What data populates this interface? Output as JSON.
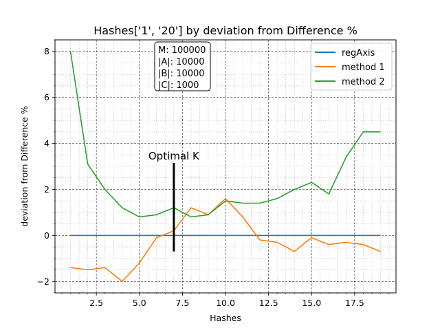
{
  "chart_data": {
    "type": "line",
    "title": "Hashes['1', '20'] by deviation from Difference %",
    "xlabel": "Hashes",
    "ylabel": "deviation from Difference %",
    "xlim": [
      0.1,
      19.9
    ],
    "ylim": [
      -2.5,
      8.5
    ],
    "xticks": [
      2.5,
      5.0,
      7.5,
      10.0,
      12.5,
      15.0,
      17.5
    ],
    "xtick_labels": [
      "2.5",
      "5.0",
      "7.5",
      "10.0",
      "12.5",
      "15.0",
      "17.5"
    ],
    "yticks": [
      -2,
      0,
      2,
      4,
      6,
      8
    ],
    "ytick_labels": [
      "−2",
      "0",
      "2",
      "4",
      "6",
      "8"
    ],
    "grid": true,
    "minor_grid": true,
    "legend_position": "top-right",
    "x": [
      1,
      2,
      3,
      4,
      5,
      6,
      7,
      8,
      9,
      10,
      11,
      12,
      13,
      14,
      15,
      16,
      17,
      18,
      19
    ],
    "series": [
      {
        "name": "regAxis",
        "color": "#1f77b4",
        "values": [
          0,
          0,
          0,
          0,
          0,
          0,
          0,
          0,
          0,
          0,
          0,
          0,
          0,
          0,
          0,
          0,
          0,
          0,
          0
        ]
      },
      {
        "name": "method 1",
        "color": "#ff7f0e",
        "values": [
          -1.4,
          -1.5,
          -1.4,
          -2.0,
          -1.2,
          -0.1,
          0.2,
          1.2,
          0.9,
          1.6,
          0.8,
          -0.2,
          -0.3,
          -0.7,
          -0.1,
          -0.4,
          -0.3,
          -0.4,
          -0.7
        ]
      },
      {
        "name": "method 2",
        "color": "#2ca02c",
        "values": [
          8.0,
          3.1,
          2.0,
          1.2,
          0.8,
          0.9,
          1.2,
          0.8,
          0.9,
          1.5,
          1.4,
          1.4,
          1.6,
          2.0,
          2.3,
          1.8,
          3.4,
          4.5,
          4.5
        ]
      }
    ],
    "info_box": [
      "M: 100000",
      "|A|: 10000",
      "|B|: 10000",
      "|C|: 1000"
    ],
    "annotation": {
      "label": "Optimal K",
      "x": 7,
      "y_from": -0.7,
      "y_to": 3.15
    }
  }
}
